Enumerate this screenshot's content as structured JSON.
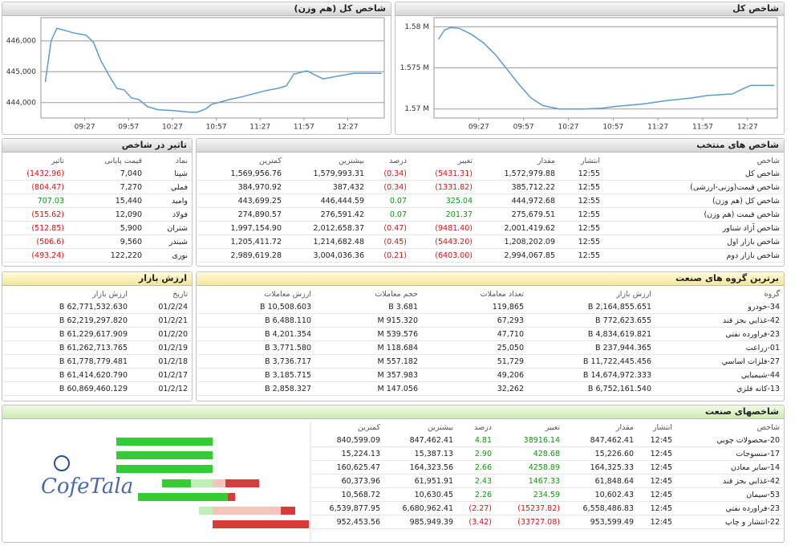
{
  "chart_data": [
    {
      "type": "line",
      "title": "شاخص کل (هم وزن)",
      "color": "#5b9bd5",
      "x": [
        "09:00",
        "09:04",
        "09:08",
        "09:14",
        "09:19",
        "09:28",
        "09:33",
        "09:38",
        "09:44",
        "09:49",
        "09:54",
        "09:59",
        "10:04",
        "10:10",
        "10:17",
        "10:28",
        "10:39",
        "10:44",
        "10:50",
        "10:54",
        "11:01",
        "11:06",
        "11:14",
        "11:31",
        "11:39",
        "11:45",
        "11:50",
        "11:59",
        "12:10",
        "12:31",
        "12:50"
      ],
      "values": [
        444670,
        446000,
        446410,
        446330,
        446260,
        446180,
        445950,
        445360,
        444850,
        444460,
        444410,
        444150,
        444100,
        443870,
        443770,
        443740,
        443690,
        443690,
        443800,
        443950,
        444030,
        444100,
        444180,
        444390,
        444460,
        444540,
        444920,
        445030,
        444770,
        444950,
        444950
      ],
      "xlim": [
        "08:57",
        "12:52"
      ],
      "xticks": [
        "09:27",
        "09:57",
        "10:27",
        "10:57",
        "11:27",
        "11:57",
        "12:27"
      ],
      "ylim": [
        443500,
        446750
      ],
      "yticks": [
        {
          "value": 444000,
          "label": "444,000"
        },
        {
          "value": 445000,
          "label": "445,000"
        },
        {
          "value": 446000,
          "label": "446,000"
        }
      ],
      "grid": true
    },
    {
      "type": "line",
      "title": "شاخص کل",
      "color": "#5b9bd5",
      "x": [
        "09:00",
        "09:04",
        "09:08",
        "09:14",
        "09:22",
        "09:30",
        "09:38",
        "09:46",
        "09:54",
        "10:02",
        "10:10",
        "10:21",
        "10:37",
        "10:50",
        "10:58",
        "11:17",
        "11:33",
        "11:49",
        "12:00",
        "12:17",
        "12:24",
        "12:29",
        "12:45"
      ],
      "values": [
        1578470,
        1579590,
        1579900,
        1579800,
        1579080,
        1578060,
        1576630,
        1574800,
        1572960,
        1571330,
        1570410,
        1570000,
        1570000,
        1570100,
        1570310,
        1570610,
        1571020,
        1571330,
        1571630,
        1571840,
        1572450,
        1572860,
        1572860
      ],
      "xlim": [
        "08:57",
        "12:47"
      ],
      "xticks": [
        "09:27",
        "09:57",
        "10:27",
        "10:57",
        "11:27",
        "11:57",
        "12:27"
      ],
      "ylim": [
        1568900,
        1581100
      ],
      "yticks": [
        {
          "value": 1570000,
          "label": "1.57 M"
        },
        {
          "value": 1575000,
          "label": "1.575 M"
        },
        {
          "value": 1580000,
          "label": "1.58 M"
        }
      ],
      "grid": true
    }
  ],
  "impact": {
    "title": "تاثیر در شاخص",
    "columns": [
      "نماد",
      "قیمت پایانی",
      "تاثیر"
    ],
    "rows": [
      [
        "شپنا",
        "7,040",
        "(1432.96)"
      ],
      [
        "فملي",
        "7,270",
        "(804.47)"
      ],
      [
        "وامید",
        "15,440",
        "707.03"
      ],
      [
        "فولاد",
        "12,090",
        "(515.62)"
      ],
      [
        "شتران",
        "5,900",
        "(512.85)"
      ],
      [
        "شبندر",
        "9,560",
        "(506.6)"
      ],
      [
        "نوری",
        "122,220",
        "(493.24)"
      ]
    ]
  },
  "selected": {
    "title": "شاخص های منتخب",
    "columns": [
      "شاخص",
      "انتشار",
      "مقدار",
      "تغییر",
      "درصد",
      "بیشترین",
      "کمترین"
    ],
    "rows": [
      [
        "شاخص کل",
        "12:55",
        "1,572,979.88",
        "(5431.31)",
        "(0.34)",
        "1,579,993.31",
        "1,569,956.76"
      ],
      [
        "شاخص قیمت(وزنی-ارزشی)",
        "12:55",
        "385,712.22",
        "(1331.82)",
        "(0.34)",
        "387,432",
        "384,970.92"
      ],
      [
        "شاخص کل (هم وزن)",
        "12:55",
        "444,972.68",
        "325.04",
        "0.07",
        "446,444.59",
        "443,699.25"
      ],
      [
        "شاخص قیمت (هم وزن)",
        "12:55",
        "275,679.51",
        "201.37",
        "0.07",
        "276,591.42",
        "274,890.57"
      ],
      [
        "شاخص آزاد شناور",
        "12:55",
        "2,001,419.62",
        "(9481.40)",
        "(0.47)",
        "2,012,658.37",
        "1,997,154.90"
      ],
      [
        "شاخص بازار اول",
        "12:55",
        "1,208,202.09",
        "(5443.20)",
        "(0.45)",
        "1,214,682.48",
        "1,205,411.72"
      ],
      [
        "شاخص بازار دوم",
        "12:55",
        "2,994,067.85",
        "(6403.00)",
        "(0.21)",
        "3,004,036.36",
        "2,989,619.28"
      ]
    ]
  },
  "market": {
    "title": "ارزش بازار",
    "columns": [
      "تاریخ",
      "ارزش بازار"
    ],
    "rows": [
      [
        "01/2/24",
        "62,771,532.630 B"
      ],
      [
        "01/2/21",
        "62,219,297.820 B"
      ],
      [
        "01/2/20",
        "61,229,617.909 B"
      ],
      [
        "01/2/19",
        "61,262,713.765 B"
      ],
      [
        "01/2/18",
        "61,778,779.481 B"
      ],
      [
        "01/2/17",
        "61,414,620.790 B"
      ],
      [
        "01/2/12",
        "60,869,460.129 B"
      ]
    ]
  },
  "top_groups": {
    "title": "برترین گروه های صنعت",
    "columns": [
      "گروه",
      "ارزش بازار",
      "تعداد معاملات",
      "حجم معاملات",
      "ارزش معاملات"
    ],
    "rows": [
      [
        "34-خودرو",
        "2,164,855.651 B",
        "119,865",
        "3.681 B",
        "10,508.603 B"
      ],
      [
        "42-غذايي بجز قند",
        "772,623.655 B",
        "67,293",
        "915.320 M",
        "6,488.110 B"
      ],
      [
        "23-فراورده نفتي",
        "4,834,619.821 B",
        "47,710",
        "539.576 M",
        "4,201.354 B"
      ],
      [
        "01-زراعت",
        "237,944.365 B",
        "25,050",
        "118.684 M",
        "3,771.580 B"
      ],
      [
        "27-فلزات اساسي",
        "11,722,445.456 B",
        "51,729",
        "557.182 M",
        "3,736.717 B"
      ],
      [
        "44-شيميايي",
        "14,674,972.333 B",
        "49,206",
        "357.983 M",
        "3,185.715 B"
      ],
      [
        "13-كانه فلزي",
        "6,752,161.540 B",
        "32,262",
        "147.056 M",
        "2,858.327 B"
      ]
    ]
  },
  "industry": {
    "title": "شاخصهای صنعت",
    "columns": [
      "شاخص",
      "انتشار",
      "مقدار",
      "تغییر",
      "درصد",
      "بیشترین",
      "کمترین"
    ],
    "rows": [
      [
        "20-محصولات چوبي",
        "12:45",
        "847,462.41",
        "38916.14",
        "4.81",
        "847,462.41",
        "840,599.09"
      ],
      [
        "17-منسوجات",
        "12:45",
        "15,226.60",
        "428.68",
        "2.90",
        "15,387.13",
        "15,224.13"
      ],
      [
        "14-ساير معادن",
        "12:45",
        "164,325.33",
        "4258.89",
        "2.66",
        "164,323.56",
        "160,625.47"
      ],
      [
        "42-غذايي بجز قند",
        "12:45",
        "61,848.64",
        "1467.33",
        "2.43",
        "61,951.91",
        "60,373.96"
      ],
      [
        "53-سيمان",
        "12:45",
        "10,602.43",
        "234.59",
        "2.26",
        "10,630.45",
        "10,568.72"
      ],
      [
        "23-فراورده نفتي",
        "12:45",
        "6,558,486.83",
        "(15237.82)",
        "(2.27)",
        "6,680,962.41",
        "6,539,877.95"
      ],
      [
        "22-انتشار و چاپ",
        "12:45",
        "953,599.49",
        "(33727.08)",
        "(3.42)",
        "985,949.39",
        "952,453.56"
      ]
    ]
  },
  "watermark": "CofeTala"
}
